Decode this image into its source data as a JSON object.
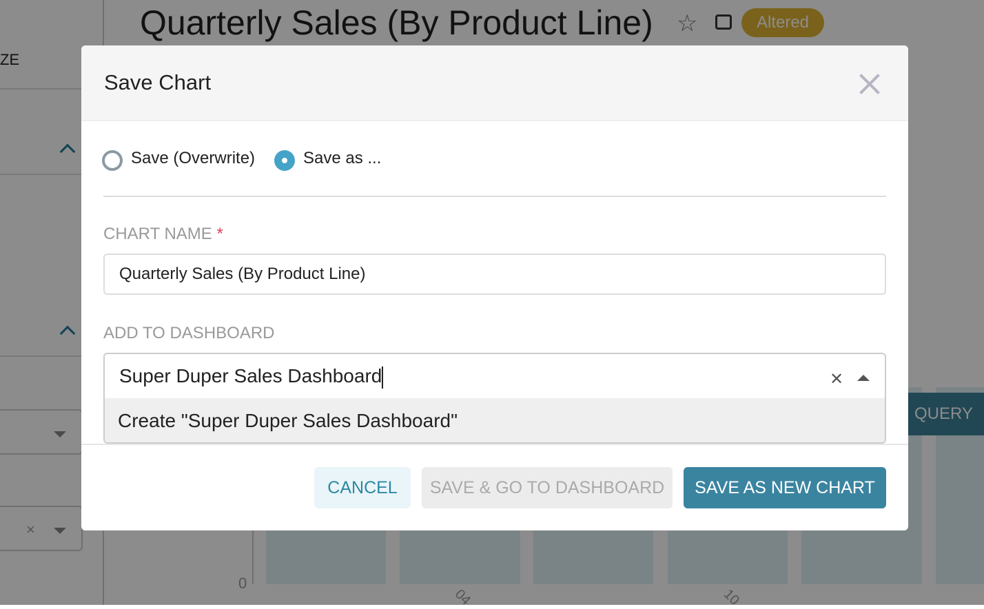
{
  "background": {
    "panel_label": "ZE",
    "chart_title": "Quarterly Sales (By Product Line)",
    "status_badge": "Altered",
    "query_button": "QUERY",
    "y_tick": "0",
    "x_ticks": [
      "04",
      "10"
    ],
    "colors": {
      "badge": "#deb233",
      "bars": "#def0f5",
      "query": "#3c8199"
    }
  },
  "modal": {
    "title": "Save Chart",
    "radio_options": [
      {
        "label": "Save (Overwrite)",
        "selected": false
      },
      {
        "label": "Save as ...",
        "selected": true
      }
    ],
    "chart_name_label": "CHART NAME",
    "required_marker": "*",
    "chart_name_value": "Quarterly Sales (By Product Line)",
    "dashboard_label": "ADD TO DASHBOARD",
    "dashboard_value": "Super Duper Sales Dashboard",
    "dashboard_option": "Create \"Super Duper Sales Dashboard\"",
    "buttons": {
      "cancel": "CANCEL",
      "save_go": "SAVE & GO TO DASHBOARD",
      "save_new": "SAVE AS NEW CHART"
    },
    "colors": {
      "primary": "#3a84a0",
      "radio_selected": "#45a3c7",
      "required": "#e04355"
    }
  }
}
